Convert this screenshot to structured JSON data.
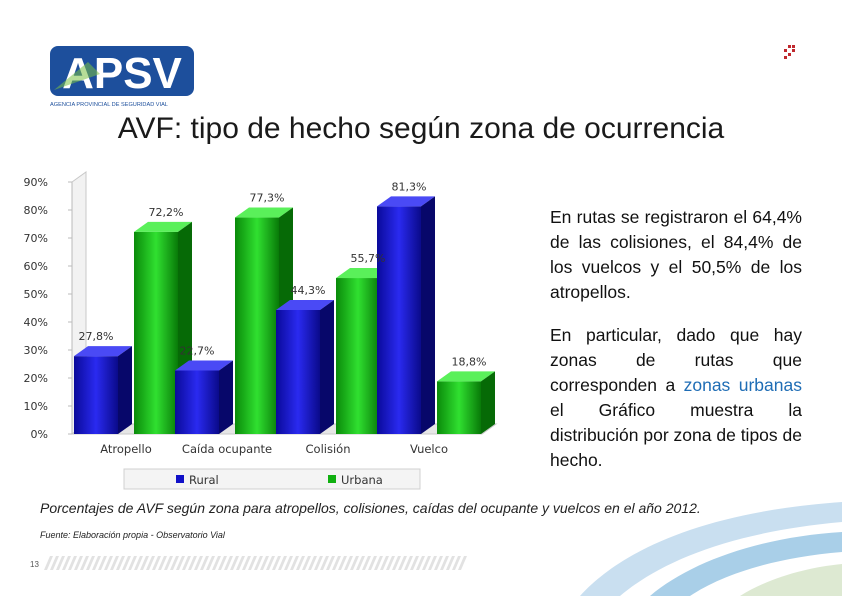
{
  "logo": {
    "text": "APSV",
    "subtitle": "AGENCIA PROVINCIAL DE SEGURIDAD VIAL"
  },
  "title": "AVF: tipo de hecho según zona de ocurrencia",
  "chart_data": {
    "type": "bar",
    "categories": [
      "Atropello",
      "Caída ocupante",
      "Colisión",
      "Vuelco"
    ],
    "series": [
      {
        "name": "Rural",
        "values": [
          27.8,
          22.7,
          44.3,
          81.3
        ],
        "labels": [
          "27,8%",
          "22,7%",
          "44,3%",
          "81,3%"
        ],
        "color": "#1010c8"
      },
      {
        "name": "Urbana",
        "values": [
          72.2,
          77.3,
          55.7,
          18.8
        ],
        "labels": [
          "72,2%",
          "77,3%",
          "55,7%",
          "18,8%"
        ],
        "color": "#10b010"
      }
    ],
    "yticks": [
      "0%",
      "10%",
      "20%",
      "30%",
      "40%",
      "50%",
      "60%",
      "70%",
      "80%",
      "90%"
    ],
    "ylim": [
      0,
      90
    ],
    "legend_position": "bottom",
    "grid": false,
    "three_d": true
  },
  "side_text": {
    "p1": "En rutas se registraron el 64,4% de las colisiones, el 84,4% de los vuelcos y el 50,5% de los atropellos.",
    "p2_start": "En particular, dado que hay zonas de rutas que corresponden a ",
    "p2_highlight": "zonas urbanas",
    "p2_end": " el Gráfico muestra la distribución por zona de tipos de hecho."
  },
  "caption": "Porcentajes de AVF según zona para atropellos, colisiones, caídas del ocupante y vuelcos en el año 2012.",
  "source": "Fuente: Elaboración propia - Observatorio Vial",
  "page_number": "13",
  "colors": {
    "accent": "#1f6db5",
    "logo_blue": "#1d4f9c",
    "logo_green": "#7ac143"
  }
}
